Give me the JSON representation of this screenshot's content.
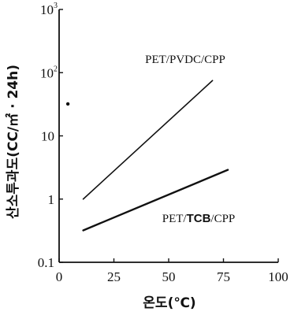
{
  "chart_data": {
    "type": "line",
    "xlabel": "온도(℃)",
    "ylabel": "산소투과도(CC/㎡ · 24h)",
    "xlim": [
      0,
      100
    ],
    "ylim": [
      0.1,
      1000
    ],
    "yscale": "log",
    "grid": false,
    "x_ticks": [
      {
        "value": 0,
        "label": "0"
      },
      {
        "value": 25,
        "label": "25"
      },
      {
        "value": 50,
        "label": "50"
      },
      {
        "value": 75,
        "label": "75"
      },
      {
        "value": 100,
        "label": "100"
      }
    ],
    "y_ticks": [
      {
        "value": 0.1,
        "label": "0.1"
      },
      {
        "value": 1,
        "label": "1"
      },
      {
        "value": 10,
        "label": "10"
      },
      {
        "value": 100,
        "label": "10",
        "sup": "2"
      },
      {
        "value": 1000,
        "label": "10",
        "sup": "3"
      }
    ],
    "series": [
      {
        "name": "PET/PVDC/CPP",
        "name_parts": [
          {
            "text": "PET/PVDC/CPP",
            "bold": false
          }
        ],
        "x": [
          11,
          70
        ],
        "y": [
          1.0,
          75
        ],
        "stroke_width": 1.6
      },
      {
        "name": "PET/TCB/CPP",
        "name_parts": [
          {
            "text": "PET/",
            "bold": false
          },
          {
            "text": "TCB",
            "bold": true
          },
          {
            "text": "/CPP",
            "bold": false
          }
        ],
        "x": [
          11,
          77
        ],
        "y": [
          0.32,
          2.9
        ],
        "stroke_width": 2.4
      }
    ],
    "points": [
      {
        "x": 4,
        "y": 32
      }
    ]
  }
}
